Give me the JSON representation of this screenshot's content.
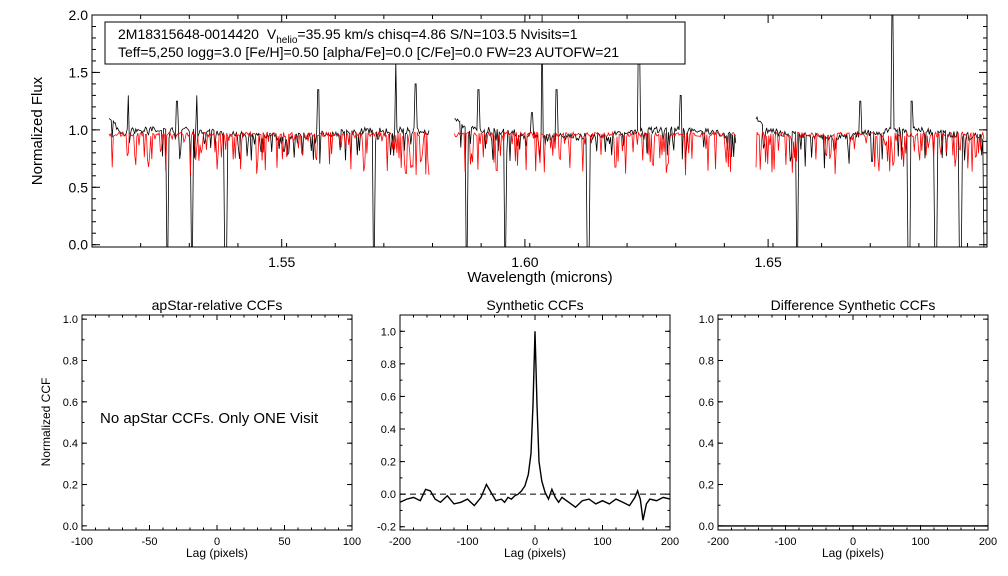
{
  "chart_data": [
    {
      "id": "spectrum",
      "type": "line",
      "info_box": {
        "line1": {
          "star": "2M18315648-0014420",
          "v_prefix": "V",
          "v_sub": "helio",
          "v_rest": "=35.95 km/s  chisq=4.86  S/N=103.5  Nvisits=1"
        },
        "line2": "Teff=5,250 logg=3.0 [Fe/H]=0.50 [alpha/Fe]=0.0 [C/Fe]=0.0 FW=23 AUTOFW=21"
      },
      "xlabel": "Wavelength (microns)",
      "ylabel": "Normalized Flux",
      "xlim": [
        1.511,
        1.695
      ],
      "ylim": [
        -0.02,
        2.0
      ],
      "x_ticks": [
        1.55,
        1.6,
        1.65
      ],
      "x_tick_labels": [
        "1.55",
        "1.60",
        "1.65"
      ],
      "y_ticks": [
        0.0,
        0.5,
        1.0,
        1.5,
        2.0
      ],
      "y_tick_labels": [
        "0.0",
        "0.5",
        "1.0",
        "1.5",
        "2.0"
      ],
      "chips": [
        [
          1.5145,
          1.5805
        ],
        [
          1.5855,
          1.6435
        ],
        [
          1.6475,
          1.6945
        ]
      ],
      "observed_color": "#000000",
      "model_color": "#ff0000",
      "deep_drops": [
        1.5265,
        1.5315,
        1.5385,
        1.569,
        1.588,
        1.596,
        1.613,
        1.656,
        1.679,
        1.6845,
        1.6895,
        1.6945
      ],
      "spikes": [
        {
          "x": 1.5185,
          "y": 1.3
        },
        {
          "x": 1.5285,
          "y": 1.25
        },
        {
          "x": 1.5325,
          "y": 1.3
        },
        {
          "x": 1.5575,
          "y": 1.35
        },
        {
          "x": 1.5735,
          "y": 1.6
        },
        {
          "x": 1.5775,
          "y": 1.4
        },
        {
          "x": 1.5905,
          "y": 1.35
        },
        {
          "x": 1.6015,
          "y": 1.15
        },
        {
          "x": 1.6035,
          "y": 2.0
        },
        {
          "x": 1.6065,
          "y": 1.35
        },
        {
          "x": 1.6235,
          "y": 1.85
        },
        {
          "x": 1.632,
          "y": 1.3
        },
        {
          "x": 1.669,
          "y": 1.25
        },
        {
          "x": 1.6755,
          "y": 2.0
        },
        {
          "x": 1.6795,
          "y": 1.25
        }
      ]
    },
    {
      "id": "apstar-ccf",
      "type": "line",
      "title": "apStar-relative CCFs",
      "xlabel": "Lag (pixels)",
      "ylabel": "Normalized CCF",
      "xlim": [
        -100,
        100
      ],
      "ylim": [
        -0.02,
        1.02
      ],
      "x_ticks": [
        -100,
        -50,
        0,
        50,
        100
      ],
      "x_tick_labels": [
        "-100",
        "-50",
        "0",
        "50",
        "100"
      ],
      "y_ticks": [
        0.0,
        0.2,
        0.4,
        0.6,
        0.8,
        1.0
      ],
      "y_tick_labels": [
        "0.0",
        "0.2",
        "0.4",
        "0.6",
        "0.8",
        "1.0"
      ],
      "message": "No apStar CCFs.  Only ONE Visit"
    },
    {
      "id": "synthetic-ccf",
      "type": "line",
      "title": "Synthetic CCFs",
      "xlabel": "Lag (pixels)",
      "xlim": [
        -200,
        200
      ],
      "ylim": [
        -0.22,
        1.1
      ],
      "x_ticks": [
        -200,
        -100,
        0,
        100,
        200
      ],
      "x_tick_labels": [
        "-200",
        "-100",
        "0",
        "100",
        "200"
      ],
      "y_ticks": [
        -0.2,
        0.0,
        0.2,
        0.4,
        0.6,
        0.8,
        1.0
      ],
      "y_tick_labels": [
        "-0.2",
        "0.0",
        "0.2",
        "0.4",
        "0.6",
        "0.8",
        "1.0"
      ],
      "zero_line": 0.0,
      "series": [
        {
          "x": [
            -200,
            -190,
            -180,
            -170,
            -162,
            -155,
            -148,
            -140,
            -130,
            -120,
            -110,
            -100,
            -90,
            -80,
            -72,
            -65,
            -58,
            -50,
            -45,
            -40,
            -35,
            -30,
            -25,
            -20,
            -15,
            -10,
            -6,
            -3,
            0,
            3,
            6,
            10,
            15,
            20,
            25,
            30,
            35,
            40,
            50,
            60,
            70,
            80,
            90,
            100,
            110,
            120,
            130,
            140,
            148,
            152,
            156,
            160,
            165,
            170,
            180,
            190,
            200
          ],
          "y": [
            -0.05,
            -0.03,
            -0.02,
            -0.04,
            0.03,
            0.02,
            -0.03,
            -0.05,
            -0.01,
            -0.06,
            -0.05,
            -0.03,
            -0.07,
            -0.02,
            0.06,
            0.01,
            -0.04,
            -0.03,
            -0.05,
            -0.02,
            -0.03,
            -0.01,
            0.0,
            0.02,
            0.05,
            0.12,
            0.25,
            0.55,
            1.0,
            0.55,
            0.2,
            0.08,
            0.01,
            -0.03,
            0.03,
            -0.02,
            -0.05,
            -0.02,
            -0.05,
            -0.08,
            -0.04,
            -0.03,
            -0.06,
            -0.04,
            -0.06,
            -0.03,
            -0.05,
            -0.07,
            -0.02,
            0.02,
            -0.03,
            -0.16,
            -0.06,
            -0.03,
            -0.04,
            -0.02,
            -0.03
          ]
        }
      ]
    },
    {
      "id": "difference-ccf",
      "type": "line",
      "title": "Difference Synthetic CCFs",
      "xlabel": "Lag (pixels)",
      "xlim": [
        -200,
        200
      ],
      "ylim": [
        -0.02,
        1.02
      ],
      "x_ticks": [
        -200,
        -100,
        0,
        100,
        200
      ],
      "x_tick_labels": [
        "-200",
        "-100",
        "0",
        "100",
        "200"
      ],
      "y_ticks": [
        0.0,
        0.2,
        0.4,
        0.6,
        0.8,
        1.0
      ],
      "y_tick_labels": [
        "0.0",
        "0.2",
        "0.4",
        "0.6",
        "0.8",
        "1.0"
      ],
      "series": [
        {
          "x": [
            -200,
            200
          ],
          "y": [
            0.0,
            0.0
          ]
        }
      ]
    }
  ]
}
